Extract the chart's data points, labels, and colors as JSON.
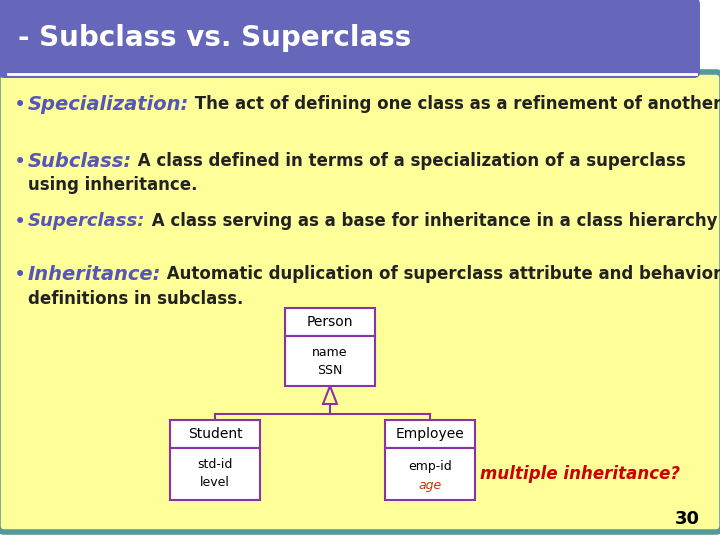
{
  "title": "- Subclass vs. Superclass",
  "title_bg_color": "#6666bb",
  "title_text_color": "#ffffff",
  "content_bg_color": "#ffff99",
  "border_color": "#559999",
  "uml_box_color": "#8833aa",
  "uml_fill_color": "#ffffff",
  "age_color": "#cc3300",
  "multi_inherit_color": "#cc0000",
  "multi_inherit_text": "multiple inheritance?",
  "page_number": "30",
  "bg_color": "#ffffff",
  "bullet_items": [
    {
      "keyword": "Specialization:",
      "text": " The act of defining one class as a refinement of another.",
      "wrap2": ""
    },
    {
      "keyword": "Subclass:",
      "text": " A class defined in terms of a specialization of a superclass",
      "wrap2": "using inheritance."
    },
    {
      "keyword": "Superclass:",
      "text": " A class serving as a base for inheritance in a class hierarchy",
      "wrap2": ""
    },
    {
      "keyword": "Inheritance:",
      "text": " Automatic duplication of superclass attribute and behavior",
      "wrap2": "definitions in subclass."
    }
  ]
}
